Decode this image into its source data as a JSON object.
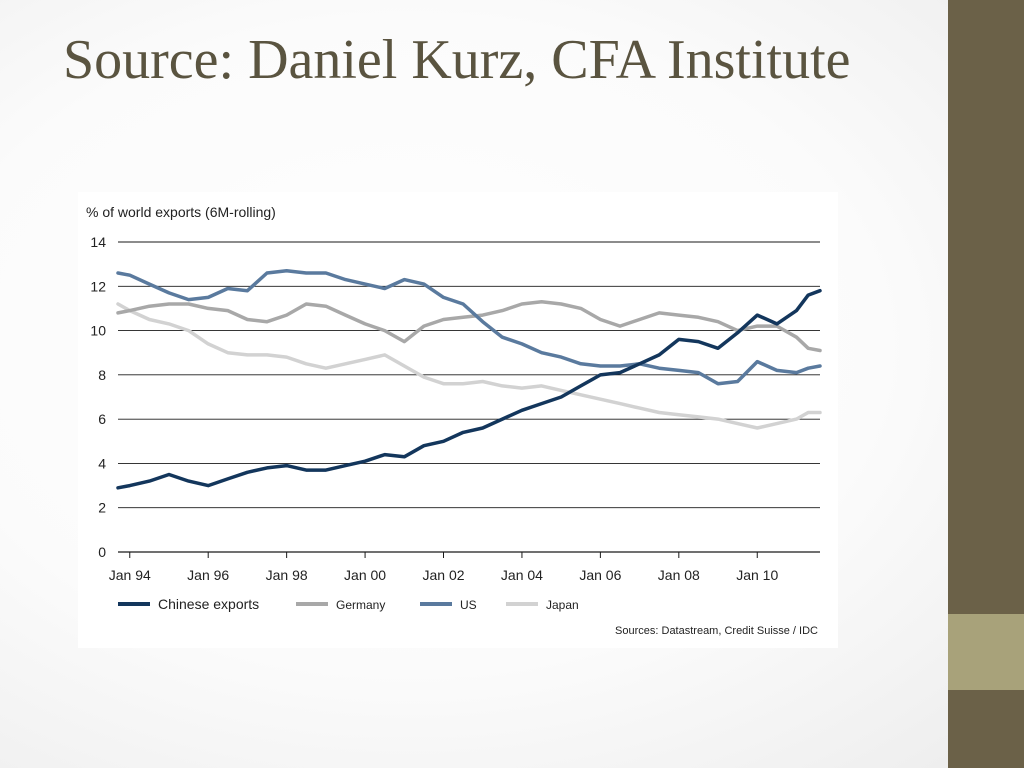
{
  "slide": {
    "title": "Source: Daniel Kurz, CFA Institute"
  },
  "colors": {
    "title": "#5a5440",
    "sidebar": "#6b6148",
    "sidebar_accent": "#a8a27a",
    "china": "#13365c",
    "germany": "#a8a8a8",
    "us": "#5a7a9e",
    "japan": "#d2d2d2"
  },
  "chart_data": {
    "type": "line",
    "title": "",
    "ylabel": "% of world exports (6M-rolling)",
    "xlabel": "",
    "ylim": [
      0,
      14
    ],
    "yticks": [
      "0",
      "2",
      "4",
      "6",
      "8",
      "10",
      "12",
      "14"
    ],
    "xticks": [
      "Jan 94",
      "Jan 96",
      "Jan 98",
      "Jan 00",
      "Jan 02",
      "Jan 04",
      "Jan 06",
      "Jan 08",
      "Jan 10"
    ],
    "xlim": [
      1993.7,
      2011.6
    ],
    "grid": true,
    "legend_position": "bottom",
    "source": "Sources: Datastream, Credit Suisse / IDC",
    "series": [
      {
        "name": "Chinese exports",
        "x": [
          1993.7,
          1994.0,
          1994.5,
          1995.0,
          1995.5,
          1996.0,
          1996.5,
          1997.0,
          1997.5,
          1998.0,
          1998.5,
          1999.0,
          1999.5,
          2000.0,
          2000.5,
          2001.0,
          2001.5,
          2002.0,
          2002.5,
          2003.0,
          2003.5,
          2004.0,
          2004.5,
          2005.0,
          2005.5,
          2006.0,
          2006.5,
          2007.0,
          2007.5,
          2008.0,
          2008.5,
          2009.0,
          2009.5,
          2010.0,
          2010.5,
          2011.0,
          2011.3,
          2011.6
        ],
        "y": [
          2.9,
          3.0,
          3.2,
          3.5,
          3.2,
          3.0,
          3.3,
          3.6,
          3.8,
          3.9,
          3.7,
          3.7,
          3.9,
          4.1,
          4.4,
          4.3,
          4.8,
          5.0,
          5.4,
          5.6,
          6.0,
          6.4,
          6.7,
          7.0,
          7.5,
          8.0,
          8.1,
          8.5,
          8.9,
          9.6,
          9.5,
          9.2,
          9.9,
          10.7,
          10.3,
          10.9,
          11.6,
          11.8
        ]
      },
      {
        "name": "Germany",
        "x": [
          1993.7,
          1994.0,
          1994.5,
          1995.0,
          1995.5,
          1996.0,
          1996.5,
          1997.0,
          1997.5,
          1998.0,
          1998.5,
          1999.0,
          1999.5,
          2000.0,
          2000.5,
          2001.0,
          2001.5,
          2002.0,
          2002.5,
          2003.0,
          2003.5,
          2004.0,
          2004.5,
          2005.0,
          2005.5,
          2006.0,
          2006.5,
          2007.0,
          2007.5,
          2008.0,
          2008.5,
          2009.0,
          2009.5,
          2010.0,
          2010.5,
          2011.0,
          2011.3,
          2011.6
        ],
        "y": [
          10.8,
          10.9,
          11.1,
          11.2,
          11.2,
          11.0,
          10.9,
          10.5,
          10.4,
          10.7,
          11.2,
          11.1,
          10.7,
          10.3,
          10.0,
          9.5,
          10.2,
          10.5,
          10.6,
          10.7,
          10.9,
          11.2,
          11.3,
          11.2,
          11.0,
          10.5,
          10.2,
          10.5,
          10.8,
          10.7,
          10.6,
          10.4,
          10.0,
          10.2,
          10.2,
          9.7,
          9.2,
          9.1
        ]
      },
      {
        "name": "US",
        "x": [
          1993.7,
          1994.0,
          1994.5,
          1995.0,
          1995.5,
          1996.0,
          1996.5,
          1997.0,
          1997.5,
          1998.0,
          1998.5,
          1999.0,
          1999.5,
          2000.0,
          2000.5,
          2001.0,
          2001.5,
          2002.0,
          2002.5,
          2003.0,
          2003.5,
          2004.0,
          2004.5,
          2005.0,
          2005.5,
          2006.0,
          2006.5,
          2007.0,
          2007.5,
          2008.0,
          2008.5,
          2009.0,
          2009.5,
          2010.0,
          2010.5,
          2011.0,
          2011.3,
          2011.6
        ],
        "y": [
          12.6,
          12.5,
          12.1,
          11.7,
          11.4,
          11.5,
          11.9,
          11.8,
          12.6,
          12.7,
          12.6,
          12.6,
          12.3,
          12.1,
          11.9,
          12.3,
          12.1,
          11.5,
          11.2,
          10.4,
          9.7,
          9.4,
          9.0,
          8.8,
          8.5,
          8.4,
          8.4,
          8.5,
          8.3,
          8.2,
          8.1,
          7.6,
          7.7,
          8.6,
          8.2,
          8.1,
          8.3,
          8.4
        ]
      },
      {
        "name": "Japan",
        "x": [
          1993.7,
          1994.0,
          1994.5,
          1995.0,
          1995.5,
          1996.0,
          1996.5,
          1997.0,
          1997.5,
          1998.0,
          1998.5,
          1999.0,
          1999.5,
          2000.0,
          2000.5,
          2001.0,
          2001.5,
          2002.0,
          2002.5,
          2003.0,
          2003.5,
          2004.0,
          2004.5,
          2005.0,
          2005.5,
          2006.0,
          2006.5,
          2007.0,
          2007.5,
          2008.0,
          2008.5,
          2009.0,
          2009.5,
          2010.0,
          2010.5,
          2011.0,
          2011.3,
          2011.6
        ],
        "y": [
          11.2,
          10.9,
          10.5,
          10.3,
          10.0,
          9.4,
          9.0,
          8.9,
          8.9,
          8.8,
          8.5,
          8.3,
          8.5,
          8.7,
          8.9,
          8.4,
          7.9,
          7.6,
          7.6,
          7.7,
          7.5,
          7.4,
          7.5,
          7.3,
          7.1,
          6.9,
          6.7,
          6.5,
          6.3,
          6.2,
          6.1,
          6.0,
          5.8,
          5.6,
          5.8,
          6.0,
          6.3,
          6.3
        ]
      }
    ]
  }
}
